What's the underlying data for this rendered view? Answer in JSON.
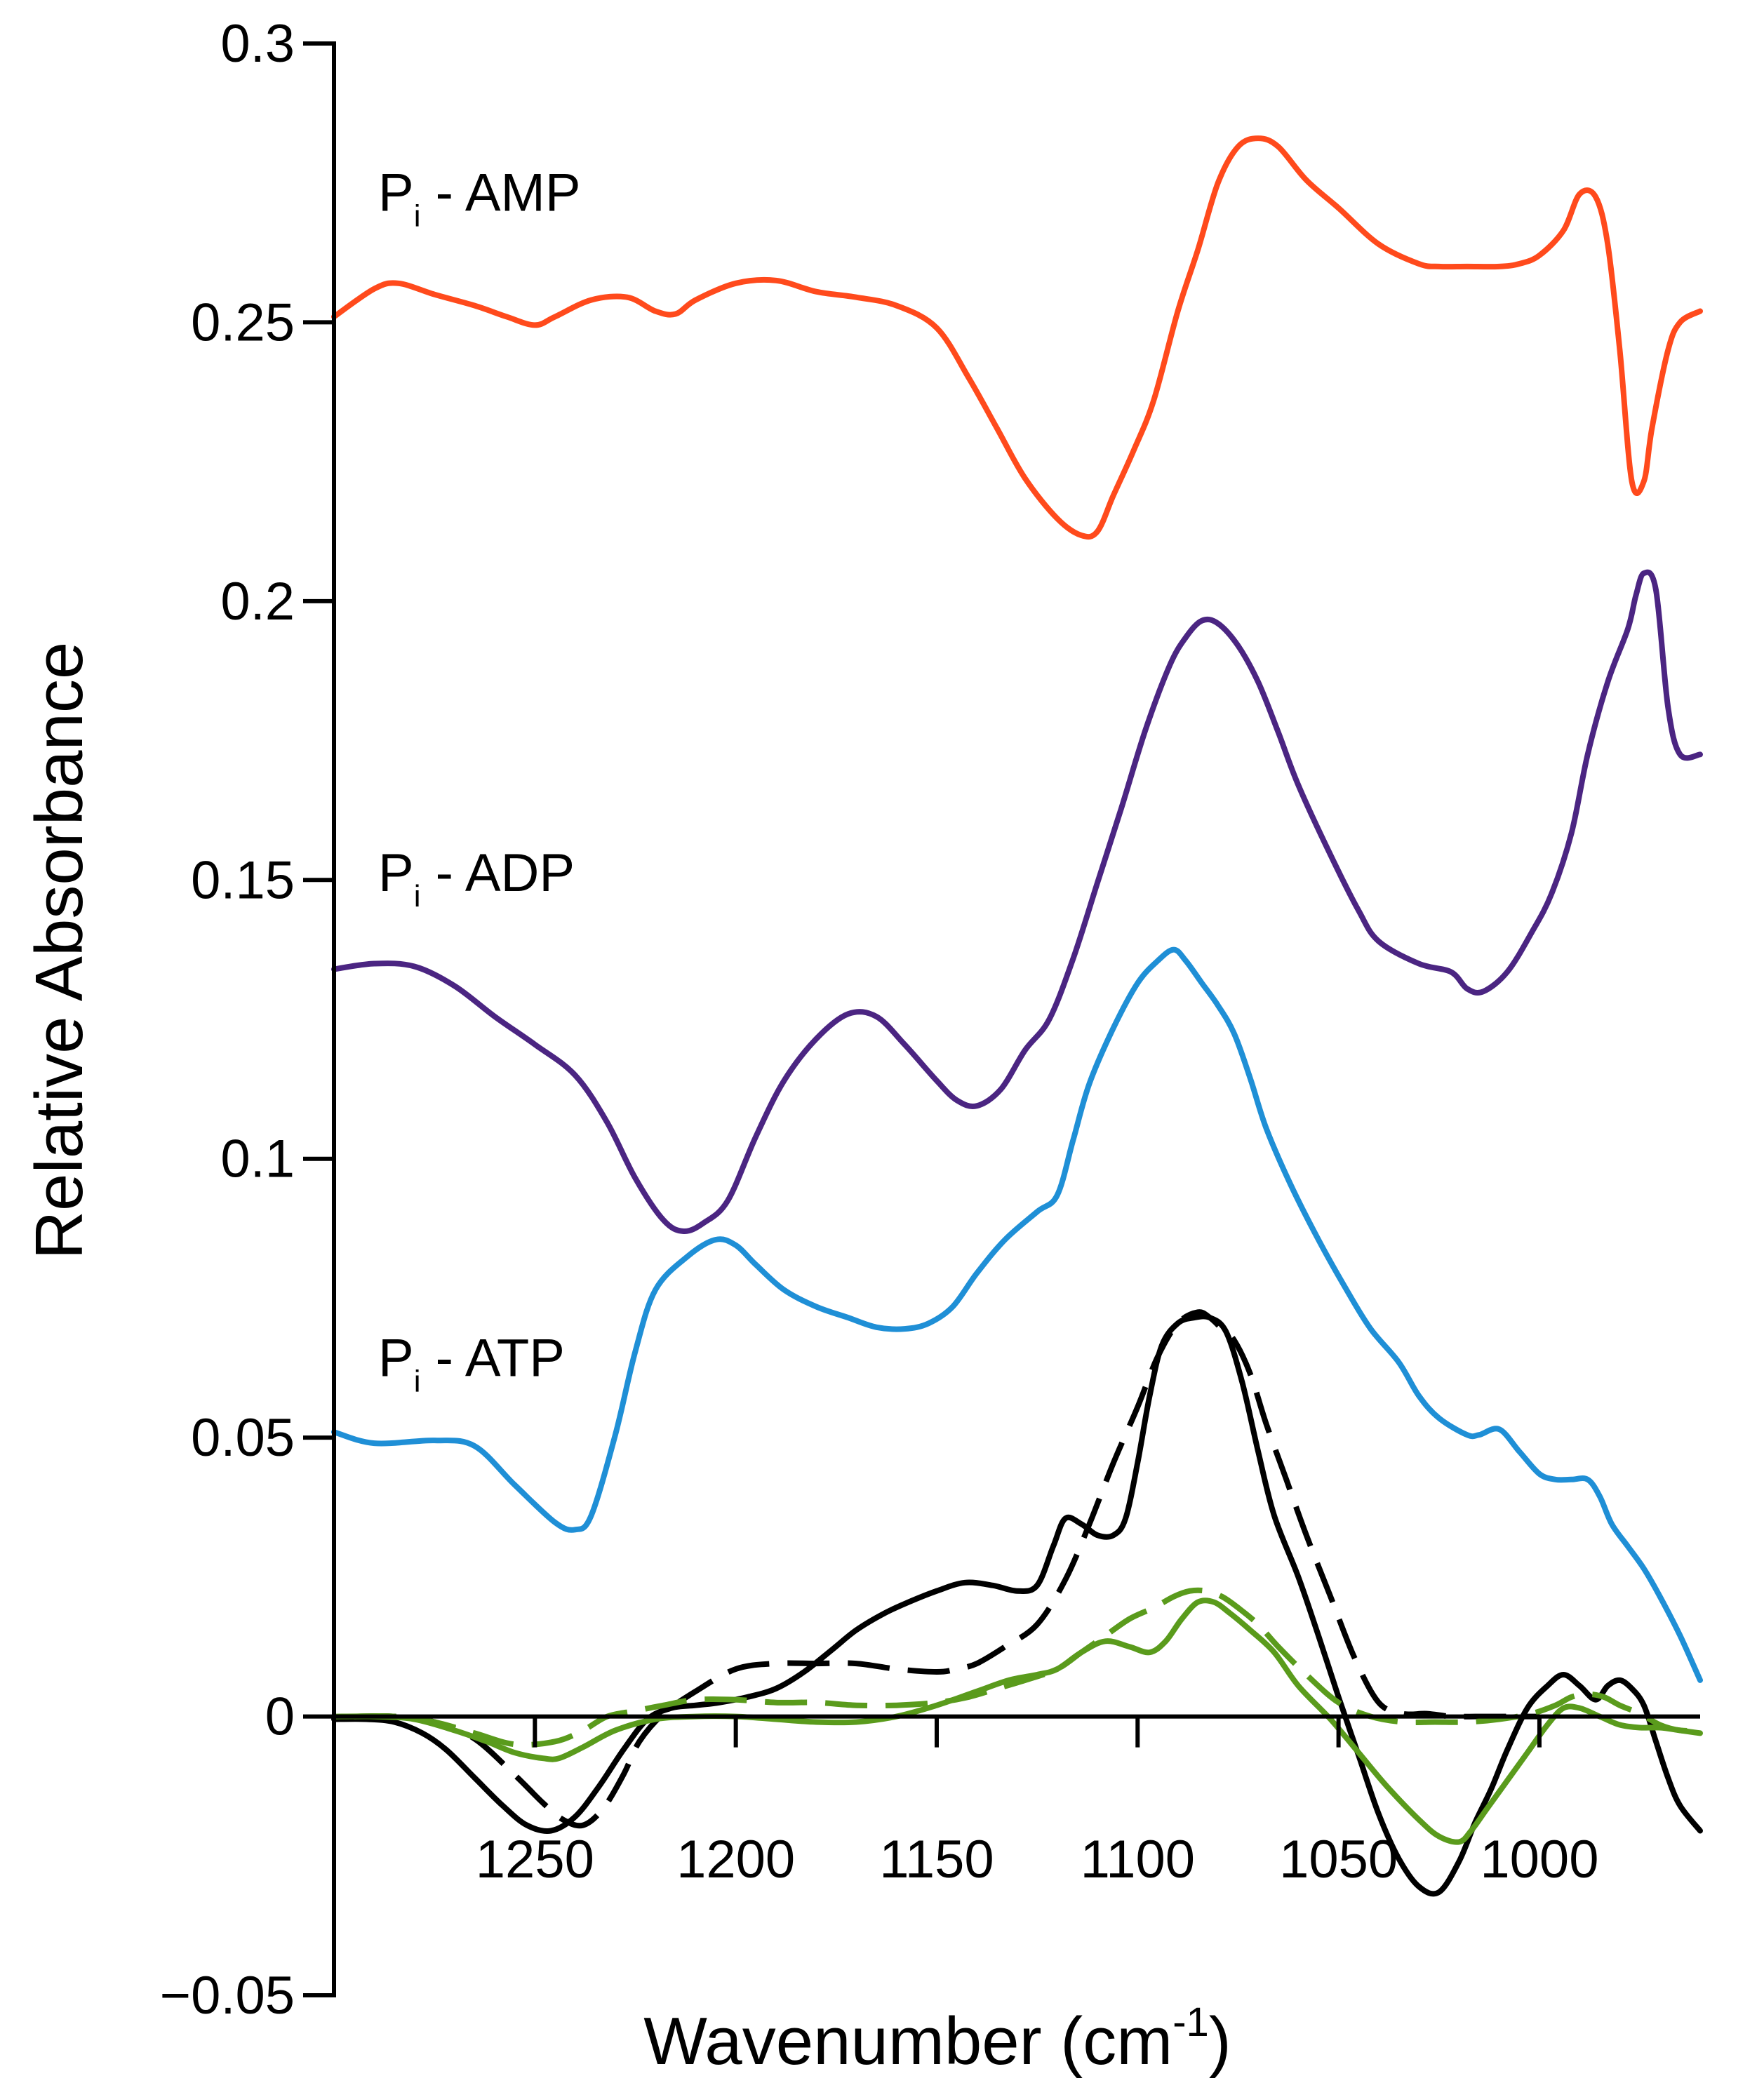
{
  "chart_data": {
    "type": "line",
    "title": "",
    "xlabel": "Wavenumber (cm",
    "xlabel_sup": "-1",
    "xlabel_suffix": ")",
    "ylabel": "Relative Absorbance",
    "xlim": [
      1300,
      960
    ],
    "ylim": [
      -0.05,
      0.3
    ],
    "xticks": [
      1250,
      1200,
      1150,
      1100,
      1050,
      1000
    ],
    "xtick_labels": [
      "1250",
      "1200",
      "1150",
      "1100",
      "1050",
      "1000"
    ],
    "yticks": [
      -0.05,
      0,
      0.05,
      0.1,
      0.15,
      0.2,
      0.25,
      0.3
    ],
    "ytick_labels": [
      "−0.05",
      "0",
      "0.05",
      "0.1",
      "0.15",
      "0.2",
      "0.25",
      "0.3"
    ],
    "grid": false,
    "annotations": [
      {
        "main": "P",
        "sub": "i",
        "rest": " - AMP",
        "x": 1289,
        "y": 0.27
      },
      {
        "main": "P",
        "sub": "i",
        "rest": " - ADP",
        "x": 1289,
        "y": 0.148
      },
      {
        "main": "P",
        "sub": "i",
        "rest": " - ATP",
        "x": 1289,
        "y": 0.061
      }
    ],
    "series": [
      {
        "name": "Pi - AMP",
        "color": "#ff4a1c",
        "dash": "solid",
        "x": [
          1300,
          1290,
          1284,
          1275,
          1265,
          1257,
          1250,
          1245,
          1236,
          1227,
          1220,
          1215,
          1210,
          1200,
          1190,
          1180,
          1170,
          1160,
          1150,
          1142,
          1135,
          1128,
          1120,
          1114,
          1110,
          1106,
          1101,
          1096,
          1090,
          1085,
          1080,
          1075,
          1070,
          1065,
          1058,
          1050,
          1040,
          1030,
          1025,
          1018,
          1010,
          1005,
          1000,
          994,
          990,
          986,
          983,
          980,
          977,
          974,
          972,
          968,
          965,
          960
        ],
        "y": [
          0.251,
          0.256,
          0.257,
          0.255,
          0.253,
          0.251,
          0.2495,
          0.251,
          0.254,
          0.2545,
          0.252,
          0.2515,
          0.254,
          0.257,
          0.2575,
          0.2555,
          0.2545,
          0.253,
          0.249,
          0.24,
          0.231,
          0.222,
          0.2148,
          0.2118,
          0.2125,
          0.219,
          0.227,
          0.236,
          0.252,
          0.263,
          0.275,
          0.2815,
          0.283,
          0.2815,
          0.2755,
          0.2705,
          0.264,
          0.2605,
          0.26,
          0.26,
          0.26,
          0.2605,
          0.262,
          0.2665,
          0.273,
          0.2725,
          0.264,
          0.245,
          0.2215,
          0.2215,
          0.231,
          0.245,
          0.25,
          0.252
        ]
      },
      {
        "name": "Pi - ADP",
        "color": "#4b2582",
        "dash": "solid",
        "x": [
          1300,
          1290,
          1280,
          1270,
          1260,
          1250,
          1240,
          1232,
          1225,
          1218,
          1213,
          1208,
          1202,
          1195,
          1188,
          1180,
          1172,
          1165,
          1158,
          1150,
          1145,
          1140,
          1134,
          1128,
          1122,
          1116,
          1110,
          1104,
          1098,
          1092,
          1088,
          1084,
          1080,
          1075,
          1070,
          1065,
          1060,
          1052,
          1045,
          1040,
          1030,
          1022,
          1018,
          1014,
          1008,
          1002,
          997,
          992,
          988,
          983,
          978,
          976,
          974,
          971,
          968,
          965,
          960
        ],
        "y": [
          0.134,
          0.135,
          0.1345,
          0.131,
          0.1255,
          0.1205,
          0.115,
          0.1065,
          0.0965,
          0.089,
          0.087,
          0.0885,
          0.0925,
          0.104,
          0.114,
          0.1215,
          0.126,
          0.1255,
          0.1205,
          0.114,
          0.1105,
          0.1095,
          0.1125,
          0.1195,
          0.125,
          0.136,
          0.1495,
          0.163,
          0.177,
          0.1885,
          0.1935,
          0.1965,
          0.196,
          0.192,
          0.1855,
          0.1765,
          0.167,
          0.1545,
          0.1445,
          0.139,
          0.135,
          0.1335,
          0.1305,
          0.13,
          0.1335,
          0.1405,
          0.1475,
          0.1585,
          0.1725,
          0.1855,
          0.195,
          0.201,
          0.205,
          0.202,
          0.181,
          0.1725,
          0.1725
        ]
      },
      {
        "name": "Pi - ATP",
        "color": "#1f8fd6",
        "dash": "solid",
        "x": [
          1300,
          1290,
          1275,
          1265,
          1255,
          1245,
          1240,
          1236,
          1230,
          1225,
          1220,
          1212,
          1205,
          1200,
          1195,
          1188,
          1180,
          1172,
          1165,
          1158,
          1152,
          1146,
          1140,
          1133,
          1125,
          1120,
          1116,
          1112,
          1106,
          1100,
          1095,
          1091,
          1088,
          1084,
          1080,
          1076,
          1072,
          1068,
          1062,
          1055,
          1048,
          1042,
          1035,
          1030,
          1025,
          1018,
          1015,
          1010,
          1005,
          1000,
          996,
          992,
          988,
          985,
          982,
          978,
          974,
          970,
          965,
          960
        ],
        "y": [
          0.051,
          0.049,
          0.0495,
          0.0485,
          0.0415,
          0.0348,
          0.0335,
          0.036,
          0.0505,
          0.0655,
          0.0765,
          0.0825,
          0.0855,
          0.0845,
          0.081,
          0.0765,
          0.0735,
          0.0715,
          0.0698,
          0.0695,
          0.0705,
          0.0735,
          0.0795,
          0.0855,
          0.0905,
          0.0935,
          0.1035,
          0.1135,
          0.1235,
          0.1315,
          0.1355,
          0.1375,
          0.1355,
          0.1315,
          0.1275,
          0.1225,
          0.1145,
          0.1055,
          0.0955,
          0.0855,
          0.0765,
          0.0695,
          0.0635,
          0.0575,
          0.0535,
          0.0505,
          0.0505,
          0.0515,
          0.0475,
          0.0435,
          0.0425,
          0.0425,
          0.0425,
          0.0395,
          0.0345,
          0.0305,
          0.0265,
          0.0215,
          0.0145,
          0.0065
        ]
      },
      {
        "name": "black solid",
        "color": "#000000",
        "dash": "solid",
        "x": [
          1300,
          1292,
          1285,
          1278,
          1272,
          1265,
          1258,
          1252,
          1246,
          1240,
          1234,
          1228,
          1222,
          1216,
          1210,
          1204,
          1197,
          1190,
          1183,
          1176,
          1170,
          1163,
          1157,
          1150,
          1143,
          1136,
          1130,
          1125,
          1121,
          1118,
          1114,
          1110,
          1106,
          1103,
          1100,
          1097,
          1094,
          1090,
          1086,
          1082,
          1078,
          1074,
          1070,
          1066,
          1060,
          1055,
          1050,
          1045,
          1040,
          1035,
          1030,
          1025,
          1020,
          1016,
          1012,
          1008,
          1003,
          998,
          994,
          990,
          986,
          983,
          980,
          977,
          974,
          971,
          968,
          965,
          960
        ],
        "y": [
          -0.0005,
          -0.0005,
          -0.001,
          -0.003,
          -0.006,
          -0.011,
          -0.016,
          -0.0195,
          -0.0205,
          -0.018,
          -0.0125,
          -0.006,
          -0.0005,
          0.0015,
          0.002,
          0.0025,
          0.0035,
          0.005,
          0.008,
          0.012,
          0.0155,
          0.0185,
          0.0205,
          0.0225,
          0.024,
          0.0235,
          0.0225,
          0.0235,
          0.0305,
          0.0355,
          0.0345,
          0.0325,
          0.0325,
          0.0355,
          0.0455,
          0.0575,
          0.0665,
          0.0705,
          0.0715,
          0.0715,
          0.069,
          0.06,
          0.0475,
          0.036,
          0.025,
          0.0145,
          0.0035,
          -0.007,
          -0.0175,
          -0.0255,
          -0.0305,
          -0.0315,
          -0.026,
          -0.019,
          -0.013,
          -0.006,
          0.0015,
          0.0055,
          0.0075,
          0.0055,
          0.003,
          0.0055,
          0.0065,
          0.005,
          0.002,
          -0.0045,
          -0.011,
          -0.016,
          -0.0205
        ]
      },
      {
        "name": "black dashed",
        "color": "#000000",
        "dash": "dashed",
        "x": [
          1295,
          1285,
          1275,
          1265,
          1255,
          1248,
          1243,
          1238,
          1233,
          1228,
          1224,
          1218,
          1210,
          1200,
          1190,
          1180,
          1170,
          1160,
          1150,
          1145,
          1140,
          1133,
          1125,
          1118,
          1112,
          1106,
          1100,
          1095,
          1090,
          1085,
          1082,
          1079,
          1076,
          1072,
          1068,
          1063,
          1058,
          1052,
          1046,
          1040,
          1034,
          1028,
          1022,
          1016,
          1010,
          1005,
          1000
        ],
        "y": [
          0.0,
          0.0,
          -0.001,
          -0.004,
          -0.0105,
          -0.0155,
          -0.0185,
          -0.0195,
          -0.0165,
          -0.0105,
          -0.0045,
          0.0005,
          0.0045,
          0.0085,
          0.0095,
          0.0095,
          0.0095,
          0.0085,
          0.008,
          0.0085,
          0.0095,
          0.0125,
          0.0165,
          0.0245,
          0.0345,
          0.0455,
          0.0555,
          0.0645,
          0.0705,
          0.0725,
          0.0715,
          0.0695,
          0.0675,
          0.0615,
          0.0525,
          0.0425,
          0.0325,
          0.0215,
          0.0105,
          0.0025,
          0.0005,
          0.0005,
          0.0,
          0.0,
          0.0,
          0.0,
          0.0
        ]
      },
      {
        "name": "green solid",
        "color": "#5a9b1c",
        "dash": "solid",
        "x": [
          1300,
          1290,
          1280,
          1270,
          1262,
          1255,
          1248,
          1244,
          1238,
          1230,
          1220,
          1210,
          1200,
          1190,
          1180,
          1170,
          1160,
          1150,
          1140,
          1132,
          1125,
          1120,
          1114,
          1108,
          1102,
          1097,
          1093,
          1089,
          1085,
          1081,
          1077,
          1072,
          1066,
          1060,
          1052,
          1045,
          1038,
          1030,
          1025,
          1020,
          1017,
          1013,
          1008,
          1003,
          998,
          994,
          990,
          985,
          980,
          975,
          970,
          965,
          960
        ],
        "y": [
          0.0,
          0.0,
          -0.0005,
          -0.0025,
          -0.0045,
          -0.0065,
          -0.0075,
          -0.0075,
          -0.0055,
          -0.0025,
          -0.0005,
          0.0,
          0.0,
          -0.0005,
          -0.001,
          -0.001,
          0.0,
          0.002,
          0.0045,
          0.0065,
          0.0075,
          0.0085,
          0.0115,
          0.0135,
          0.0125,
          0.0115,
          0.0135,
          0.0175,
          0.0205,
          0.0205,
          0.0185,
          0.0155,
          0.0115,
          0.0055,
          -0.0005,
          -0.0065,
          -0.0125,
          -0.0185,
          -0.0215,
          -0.0225,
          -0.0205,
          -0.0165,
          -0.0115,
          -0.0065,
          -0.0015,
          0.0015,
          0.0015,
          0.0,
          -0.0015,
          -0.002,
          -0.002,
          -0.0025,
          -0.003
        ]
      },
      {
        "name": "green dashed",
        "color": "#5a9b1c",
        "dash": "dashed",
        "x": [
          1295,
          1285,
          1275,
          1265,
          1255,
          1245,
          1238,
          1232,
          1225,
          1218,
          1210,
          1200,
          1190,
          1180,
          1170,
          1160,
          1150,
          1142,
          1135,
          1128,
          1120,
          1114,
          1108,
          1102,
          1096,
          1091,
          1087,
          1083,
          1079,
          1075,
          1070,
          1065,
          1058,
          1050,
          1042,
          1034,
          1026,
          1018,
          1010,
          1002,
          996,
          992,
          988,
          984,
          980,
          975,
          970,
          965,
          960
        ],
        "y": [
          0.0,
          0.0,
          -0.001,
          -0.003,
          -0.005,
          -0.0045,
          -0.0025,
          0.0,
          0.001,
          0.002,
          0.003,
          0.003,
          0.0025,
          0.0025,
          0.002,
          0.002,
          0.0025,
          0.0035,
          0.005,
          0.0065,
          0.0085,
          0.0115,
          0.0145,
          0.0175,
          0.0195,
          0.0215,
          0.0225,
          0.0225,
          0.0215,
          0.0195,
          0.0165,
          0.0125,
          0.0075,
          0.0025,
          0.0,
          -0.001,
          -0.001,
          -0.001,
          -0.0005,
          0.0005,
          0.002,
          0.0035,
          0.004,
          0.0035,
          0.002,
          0.0005,
          -0.0015,
          -0.0025,
          -0.0025
        ]
      }
    ]
  }
}
